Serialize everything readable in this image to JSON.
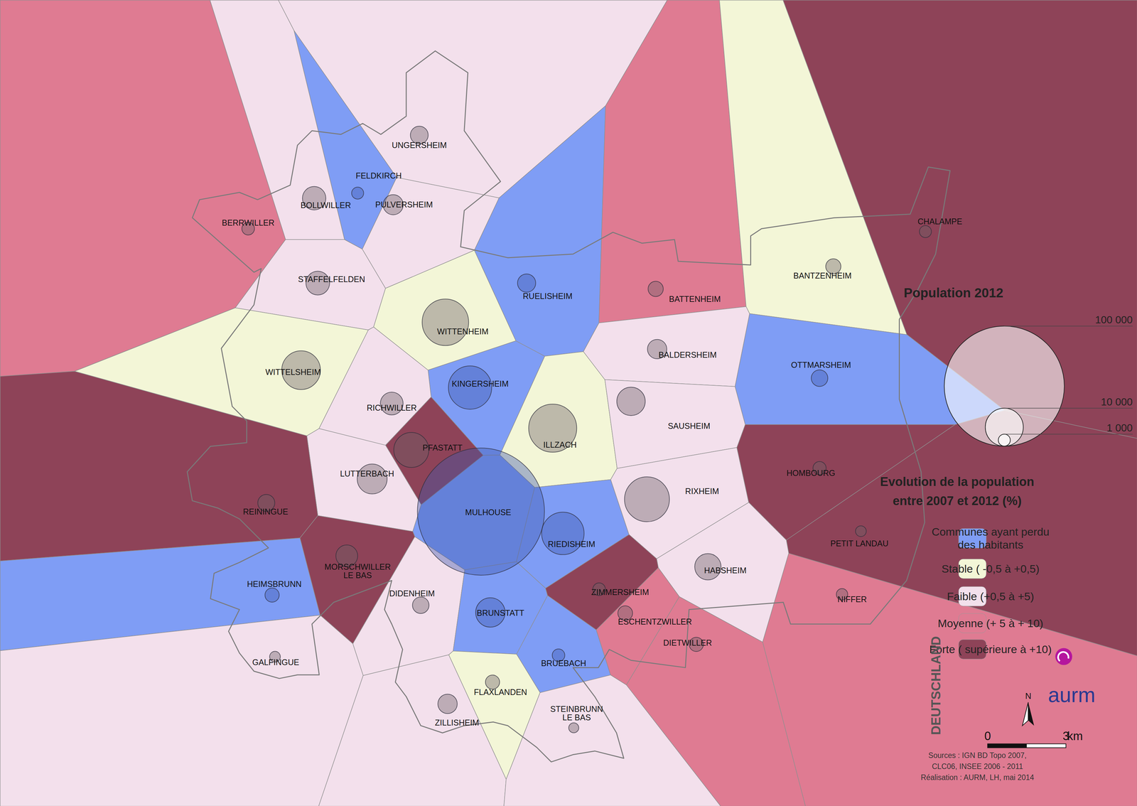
{
  "chart_data": {
    "type": "map",
    "size_legend": {
      "title": "Population 2012",
      "values": [
        {
          "value": 100000,
          "label": "100 000"
        },
        {
          "value": 10000,
          "label": "10 000"
        },
        {
          "value": 1000,
          "label": "1 000"
        }
      ]
    },
    "color_legend": {
      "title": [
        "Evolution de la population",
        "entre 2007 et 2012 (%)"
      ],
      "classes": [
        {
          "label": [
            "Communes ayant perdu",
            "des habitants"
          ],
          "color": "#7f9df5"
        },
        {
          "label": [
            "Stable ( -0,5 à +0,5)"
          ],
          "color": "#f3f6d7"
        },
        {
          "label": [
            "Faible (+0,5 à +5)"
          ],
          "color": "#f3e0ec"
        },
        {
          "label": [
            "Moyenne (+ 5 à + 10)"
          ],
          "color": "#df7b92"
        },
        {
          "label": [
            "Forte ( supérieure à +10)"
          ],
          "color": "#8e4358"
        }
      ]
    },
    "communes": [
      {
        "name": [
          "UNGERSHEIM"
        ],
        "population": 2200,
        "class": 2
      },
      {
        "name": [
          "FELDKIRCH"
        ],
        "population": 1000,
        "class": 0
      },
      {
        "name": [
          "BOLLWILLER"
        ],
        "population": 3800,
        "class": 2
      },
      {
        "name": [
          "PULVERSHEIM"
        ],
        "population": 2800,
        "class": 2
      },
      {
        "name": [
          "BERRWILLER"
        ],
        "population": 1100,
        "class": 3
      },
      {
        "name": [
          "STAFFELFELDEN"
        ],
        "population": 3900,
        "class": 2
      },
      {
        "name": [
          "RUELISHEIM"
        ],
        "population": 2300,
        "class": 0
      },
      {
        "name": [
          "BATTENHEIM"
        ],
        "population": 1600,
        "class": 3
      },
      {
        "name": [
          "BANTZENHEIM"
        ],
        "population": 1600,
        "class": 1
      },
      {
        "name": [
          "CHALAMPE"
        ],
        "population": 1000,
        "class": 4
      },
      {
        "name": [
          "WITTENHEIM"
        ],
        "population": 15000,
        "class": 1
      },
      {
        "name": [
          "WITTELSHEIM"
        ],
        "population": 10400,
        "class": 1
      },
      {
        "name": [
          "KINGERSHEIM"
        ],
        "population": 13000,
        "class": 0
      },
      {
        "name": [
          "RICHWILLER"
        ],
        "population": 3600,
        "class": 2
      },
      {
        "name": [
          "ILLZACH"
        ],
        "population": 16000,
        "class": 1
      },
      {
        "name": [
          "BALDERSHEIM"
        ],
        "population": 2600,
        "class": 2
      },
      {
        "name": [
          "SAUSHEIM"
        ],
        "population": 5600,
        "class": 2
      },
      {
        "name": [
          "OTTMARSHEIM"
        ],
        "population": 1900,
        "class": 0
      },
      {
        "name": [
          "PFASTATT"
        ],
        "population": 8500,
        "class": 4
      },
      {
        "name": [
          "LUTTERBACH"
        ],
        "population": 6200,
        "class": 2
      },
      {
        "name": [
          "REININGUE"
        ],
        "population": 2000,
        "class": 4
      },
      {
        "name": [
          "MULHOUSE"
        ],
        "population": 112000,
        "class": 0
      },
      {
        "name": [
          "RIEDISHEIM"
        ],
        "population": 12500,
        "class": 0
      },
      {
        "name": [
          "RIXHEIM"
        ],
        "population": 14000,
        "class": 2
      },
      {
        "name": [
          "HOMBOURG"
        ],
        "population": 1200,
        "class": 4
      },
      {
        "name": [
          "PETIT LANDAU"
        ],
        "population": 800,
        "class": 4
      },
      {
        "name": [
          "HABSHEIM"
        ],
        "population": 4800,
        "class": 2
      },
      {
        "name": [
          "NIFFER"
        ],
        "population": 900,
        "class": 3
      },
      {
        "name": [
          "HEIMSBRUNN"
        ],
        "population": 1400,
        "class": 0
      },
      {
        "name": [
          "MORSCHWILLER",
          "LE BAS"
        ],
        "population": 3300,
        "class": 4
      },
      {
        "name": [
          "DIDENHEIM"
        ],
        "population": 1900,
        "class": 2
      },
      {
        "name": [
          "BRUNSTATT"
        ],
        "population": 6000,
        "class": 0
      },
      {
        "name": [
          "ZIMMERSHEIM"
        ],
        "population": 1100,
        "class": 4
      },
      {
        "name": [
          "ESCHENTZWILLER"
        ],
        "population": 1500,
        "class": 3
      },
      {
        "name": [
          "DIETWILLER"
        ],
        "population": 1400,
        "class": 3
      },
      {
        "name": [
          "GALFINGUE"
        ],
        "population": 800,
        "class": 2
      },
      {
        "name": [
          "BRUEBACH"
        ],
        "population": 1100,
        "class": 0
      },
      {
        "name": [
          "FLAXLANDEN"
        ],
        "population": 1400,
        "class": 1
      },
      {
        "name": [
          "ZILLISHEIM"
        ],
        "population": 2600,
        "class": 2
      },
      {
        "name": [
          "STEINBRUNN",
          "LE BAS"
        ],
        "population": 700,
        "class": 2
      }
    ],
    "country_label": "DEUTSCHLAND",
    "north": "N",
    "logo": "aurm",
    "scale_bar": {
      "values": [
        0,
        3
      ],
      "unit": "km"
    },
    "sources": [
      "Sources : IGN BD Topo 2007,",
      "CLC06, INSEE 2006 - 2011",
      "Réalisation : AURM, LH, mai 2014"
    ]
  }
}
